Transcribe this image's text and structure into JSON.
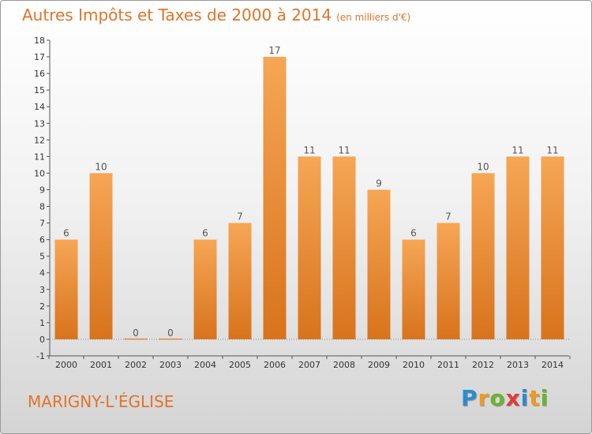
{
  "title": "Autres Impôts et Taxes de 2000 à 2014",
  "subtitle": "(en milliers d'€)",
  "commune": "MARIGNY-L'ÉGLISE",
  "logo": {
    "letters": [
      "P",
      "r",
      "o",
      "x",
      "i",
      "t",
      "i"
    ],
    "colors": [
      "#2d8bd0",
      "#f29a1e",
      "#6ab42d",
      "#e23a3a",
      "#2d8bd0",
      "#f29a1e",
      "#6ab42d"
    ]
  },
  "colors": {
    "bar_top": "#f6a655",
    "bar_bottom": "#d8731c",
    "text": "#e0742a",
    "axis": "#555555"
  },
  "chart_data": {
    "type": "bar",
    "categories": [
      "2000",
      "2001",
      "2002",
      "2003",
      "2004",
      "2005",
      "2006",
      "2007",
      "2008",
      "2009",
      "2010",
      "2011",
      "2012",
      "2013",
      "2014"
    ],
    "values": [
      6,
      10,
      0,
      0,
      6,
      7,
      17,
      11,
      11,
      9,
      6,
      7,
      10,
      11,
      11
    ],
    "data_labels": [
      "6",
      "10",
      "0",
      "0",
      "6",
      "7",
      "17",
      "11",
      "11",
      "9",
      "6",
      "7",
      "10",
      "11",
      "11"
    ],
    "ylim": [
      -1,
      18
    ],
    "yticks": [
      -1,
      0,
      1,
      2,
      3,
      4,
      5,
      6,
      7,
      8,
      9,
      10,
      11,
      12,
      13,
      14,
      15,
      16,
      17,
      18
    ],
    "ytick_labels": [
      "-1",
      "0",
      "1",
      "2",
      "3",
      "4",
      "5",
      "6",
      "7",
      "8",
      "9",
      "10",
      "11",
      "12",
      "13",
      "14",
      "15",
      "16",
      "17",
      "18"
    ],
    "grid": false
  }
}
